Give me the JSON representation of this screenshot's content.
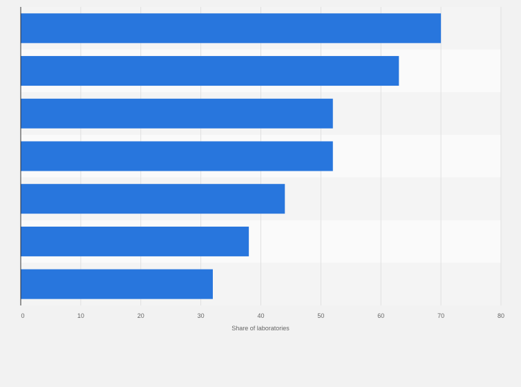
{
  "chart_data": {
    "type": "bar",
    "orientation": "horizontal",
    "categories": [
      "",
      "",
      "",
      "",
      "",
      "",
      ""
    ],
    "values": [
      70,
      63,
      52,
      52,
      44,
      38,
      32
    ],
    "title": "",
    "xlabel": "Share of laboratories",
    "ylabel": "",
    "xlim": [
      0,
      80
    ],
    "xticks": [
      "0",
      "10",
      "20",
      "30",
      "40",
      "50",
      "60",
      "70",
      "80"
    ],
    "grid": true,
    "bar_color": "#2876dd"
  }
}
